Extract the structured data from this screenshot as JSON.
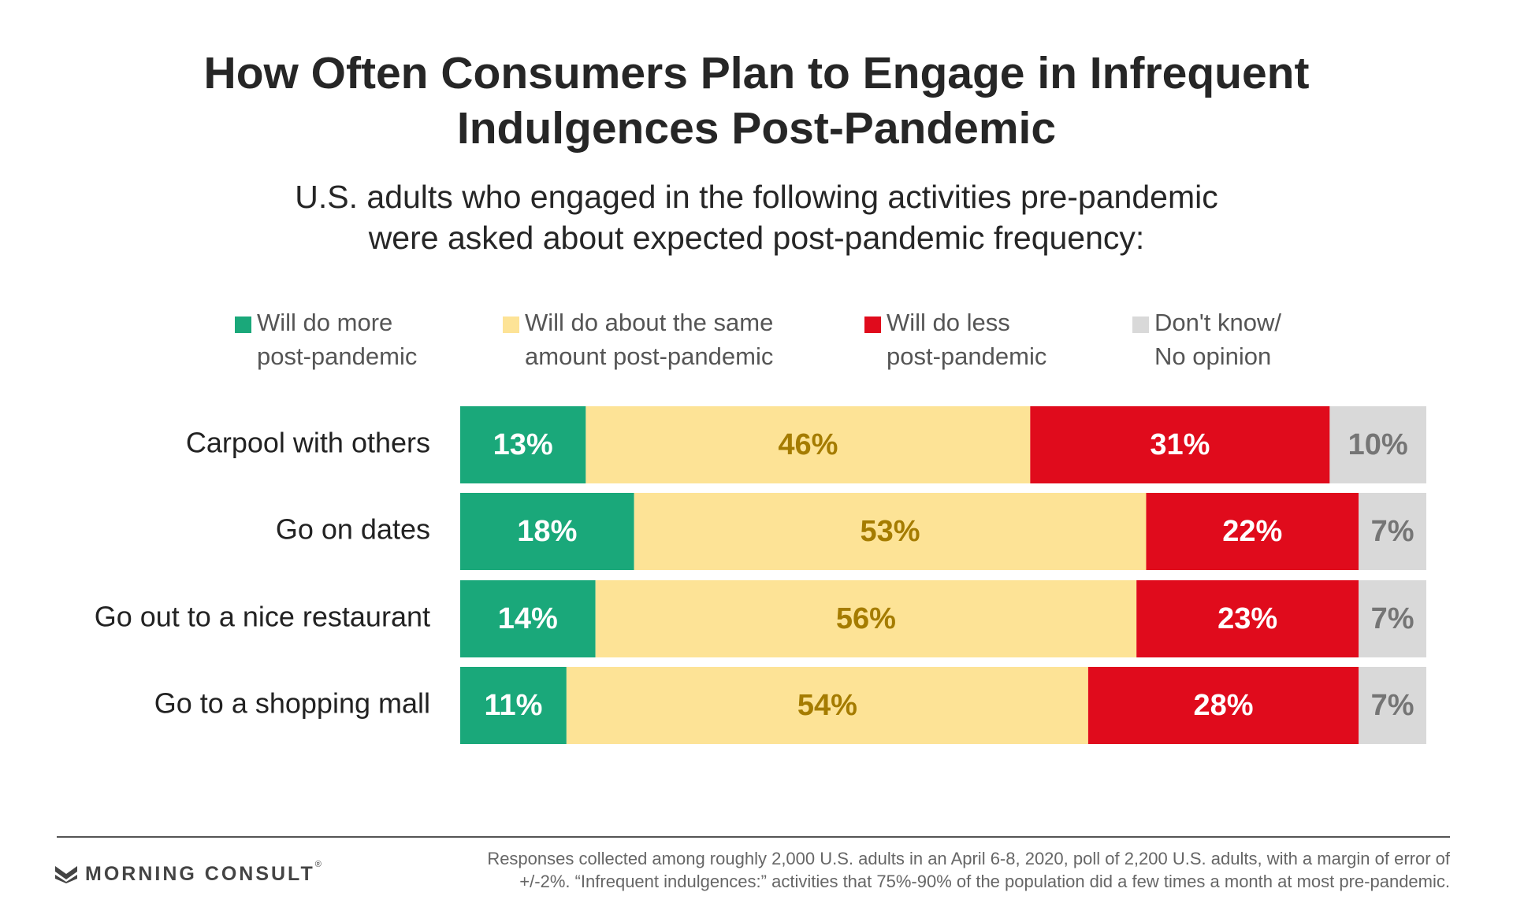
{
  "title_lines": [
    "How Often Consumers Plan to Engage in Infrequent",
    "Indulgences Post-Pandemic"
  ],
  "subtitle_lines": [
    "U.S. adults who engaged in the following activities pre-pandemic",
    "were asked about expected post-pandemic frequency:"
  ],
  "legend": [
    {
      "lines": [
        "Will do more",
        "post-pandemic"
      ],
      "color": "#1aa87a"
    },
    {
      "lines": [
        "Will do about the same",
        "amount post-pandemic"
      ],
      "color": "#fde396"
    },
    {
      "lines": [
        "Will do less",
        "post-pandemic"
      ],
      "color": "#e00b1c"
    },
    {
      "lines": [
        "Don't know/",
        "No opinion"
      ],
      "color": "#d9d9d9"
    }
  ],
  "chart_data": {
    "type": "bar",
    "orientation": "horizontal",
    "stacked": true,
    "categories": [
      "Carpool with others",
      "Go on dates",
      "Go out to a nice restaurant",
      "Go to a shopping mall"
    ],
    "series": [
      {
        "name": "Will do more post-pandemic",
        "values": [
          13,
          18,
          14,
          11
        ],
        "color": "#1aa87a",
        "label_color": "#ffffff"
      },
      {
        "name": "Will do about the same amount post-pandemic",
        "values": [
          46,
          53,
          56,
          54
        ],
        "color": "#fde396",
        "label_color": "#a57c00"
      },
      {
        "name": "Will do less post-pandemic",
        "values": [
          31,
          22,
          23,
          28
        ],
        "color": "#e00b1c",
        "label_color": "#ffffff"
      },
      {
        "name": "Don't know/No opinion",
        "values": [
          10,
          7,
          7,
          7
        ],
        "color": "#d9d9d9",
        "label_color": "#757575"
      }
    ],
    "value_suffix": "%",
    "xlim": [
      0,
      100
    ],
    "grid": false,
    "legend_position": "top"
  },
  "footer": {
    "logo_text": "MORNING CONSULT",
    "logo_mark": "®",
    "note_lines": [
      "Responses collected among roughly 2,000 U.S. adults in an April 6-8, 2020, poll of 2,200 U.S. adults, with a margin of error of",
      "+/-2%. “Infrequent indulgences:” activities that 75%-90% of the population did a few times a month at most pre-pandemic."
    ],
    "logo_color": "#444444"
  }
}
